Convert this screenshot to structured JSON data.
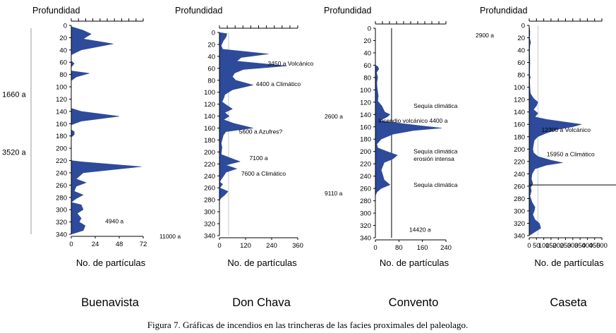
{
  "caption": "Figura 7. Gráficas de incendios en las trincheras de las facies proximales del paleolago.",
  "colors": {
    "fill": "#2e4a9a",
    "axis": "#000000",
    "grid": "#c8c8c8"
  },
  "chart_data": [
    {
      "type": "area",
      "site": "Buenavista",
      "ylabel": "Profundidad",
      "xlabel": "No. de partículas",
      "ylim": [
        0,
        340
      ],
      "y_ticks": [
        0,
        20,
        40,
        60,
        80,
        100,
        120,
        140,
        160,
        180,
        200,
        220,
        240,
        260,
        280,
        300,
        320,
        340
      ],
      "xlim": [
        0,
        72
      ],
      "x_ticks": [
        0,
        24,
        48,
        72
      ],
      "x_tick_labels": [
        "0",
        "24",
        "48",
        "72"
      ],
      "profile": [
        [
          0,
          0
        ],
        [
          2,
          0
        ],
        [
          8,
          12
        ],
        [
          14,
          20
        ],
        [
          22,
          12
        ],
        [
          30,
          42
        ],
        [
          40,
          10
        ],
        [
          48,
          0
        ],
        [
          58,
          0
        ],
        [
          62,
          3
        ],
        [
          68,
          0
        ],
        [
          74,
          0
        ],
        [
          78,
          18
        ],
        [
          84,
          5
        ],
        [
          90,
          0
        ],
        [
          135,
          0
        ],
        [
          140,
          10
        ],
        [
          148,
          48
        ],
        [
          156,
          10
        ],
        [
          162,
          0
        ],
        [
          170,
          0
        ],
        [
          173,
          3
        ],
        [
          178,
          3
        ],
        [
          182,
          0
        ],
        [
          220,
          0
        ],
        [
          222,
          10
        ],
        [
          230,
          70
        ],
        [
          240,
          12
        ],
        [
          250,
          5
        ],
        [
          256,
          15
        ],
        [
          262,
          5
        ],
        [
          270,
          3
        ],
        [
          276,
          12
        ],
        [
          282,
          5
        ],
        [
          288,
          0
        ],
        [
          292,
          10
        ],
        [
          300,
          12
        ],
        [
          306,
          6
        ],
        [
          314,
          10
        ],
        [
          320,
          8
        ],
        [
          326,
          14
        ],
        [
          334,
          12
        ],
        [
          340,
          0
        ]
      ],
      "annotations": [
        {
          "text": "4940 a",
          "depth": 319,
          "x": 34
        }
      ],
      "left_annotations": [
        {
          "text": "1660 a",
          "depth": 112
        },
        {
          "text": "3520 a",
          "depth": 206
        }
      ],
      "ref_line": null,
      "h_line": null
    },
    {
      "type": "area",
      "site": "Don Chava",
      "ylabel": "Profundidad",
      "xlabel": "No. de partículas",
      "ylim": [
        0,
        340
      ],
      "y_ticks": [
        0,
        20,
        40,
        60,
        80,
        100,
        120,
        140,
        160,
        180,
        200,
        220,
        240,
        260,
        280,
        300,
        320,
        340
      ],
      "xlim": [
        0,
        360
      ],
      "x_ticks": [
        0,
        120,
        240,
        360
      ],
      "x_tick_labels": [
        "0",
        "120",
        "240",
        "360"
      ],
      "profile": [
        [
          0,
          0
        ],
        [
          2,
          35
        ],
        [
          8,
          30
        ],
        [
          14,
          18
        ],
        [
          22,
          8
        ],
        [
          28,
          15
        ],
        [
          36,
          225
        ],
        [
          42,
          100
        ],
        [
          48,
          80
        ],
        [
          56,
          310
        ],
        [
          62,
          110
        ],
        [
          68,
          70
        ],
        [
          74,
          60
        ],
        [
          80,
          75
        ],
        [
          88,
          155
        ],
        [
          96,
          60
        ],
        [
          104,
          25
        ],
        [
          110,
          20
        ],
        [
          116,
          12
        ],
        [
          122,
          35
        ],
        [
          128,
          60
        ],
        [
          134,
          25
        ],
        [
          140,
          45
        ],
        [
          146,
          20
        ],
        [
          152,
          65
        ],
        [
          160,
          155
        ],
        [
          166,
          30
        ],
        [
          172,
          18
        ],
        [
          180,
          12
        ],
        [
          186,
          8
        ],
        [
          192,
          12
        ],
        [
          198,
          10
        ],
        [
          204,
          8
        ],
        [
          210,
          50
        ],
        [
          216,
          95
        ],
        [
          222,
          30
        ],
        [
          228,
          80
        ],
        [
          234,
          30
        ],
        [
          240,
          20
        ],
        [
          246,
          8
        ],
        [
          250,
          2
        ],
        [
          254,
          15
        ],
        [
          260,
          2
        ],
        [
          266,
          40
        ],
        [
          272,
          25
        ],
        [
          278,
          5
        ],
        [
          282,
          0
        ]
      ],
      "annotations": [
        {
          "text": "3450 a Volcánico",
          "depth": 52,
          "x": 222
        },
        {
          "text": "4400 a Climático",
          "depth": 86,
          "x": 168
        },
        {
          "text": "5600 a  Azufres?",
          "depth": 166,
          "x": 90
        },
        {
          "text": "7100 a",
          "depth": 210,
          "x": 138
        },
        {
          "text": "7600 a Climático",
          "depth": 236,
          "x": 100
        }
      ],
      "left_annotations": [
        {
          "text": "11000 a",
          "depth": 340
        }
      ],
      "ref_line": 42,
      "h_line": null
    },
    {
      "type": "area",
      "site": "Convento",
      "ylabel": "Profundidad",
      "xlabel": "No. de partículas",
      "ylim": [
        0,
        340
      ],
      "y_ticks": [
        0,
        20,
        40,
        60,
        80,
        100,
        120,
        140,
        160,
        180,
        200,
        220,
        240,
        260,
        280,
        300,
        320,
        340
      ],
      "xlim": [
        0,
        240
      ],
      "x_ticks": [
        0,
        80,
        160,
        240
      ],
      "x_tick_labels": [
        "0",
        "80",
        "160",
        "240"
      ],
      "profile": [
        [
          60,
          0
        ],
        [
          62,
          8
        ],
        [
          66,
          12
        ],
        [
          72,
          4
        ],
        [
          80,
          8
        ],
        [
          88,
          5
        ],
        [
          96,
          6
        ],
        [
          110,
          10
        ],
        [
          118,
          8
        ],
        [
          126,
          22
        ],
        [
          132,
          28
        ],
        [
          136,
          32
        ],
        [
          140,
          50
        ],
        [
          144,
          40
        ],
        [
          150,
          15
        ],
        [
          154,
          80
        ],
        [
          158,
          150
        ],
        [
          162,
          225
        ],
        [
          166,
          130
        ],
        [
          172,
          60
        ],
        [
          180,
          20
        ],
        [
          188,
          5
        ],
        [
          194,
          8
        ],
        [
          200,
          40
        ],
        [
          206,
          75
        ],
        [
          212,
          60
        ],
        [
          218,
          30
        ],
        [
          224,
          25
        ],
        [
          230,
          20
        ],
        [
          238,
          25
        ],
        [
          246,
          30
        ],
        [
          254,
          50
        ],
        [
          260,
          20
        ],
        [
          266,
          5
        ],
        [
          272,
          0
        ]
      ],
      "annotations": [
        {
          "text": "Sequía climática",
          "depth": 126,
          "x": 130
        },
        {
          "text": "Incendio volcánico 4400 a",
          "depth": 150,
          "x": 10
        },
        {
          "text": "Sequía climática",
          "depth": 200,
          "x": 130
        },
        {
          "text": "erosión intensa",
          "depth": 212,
          "x": 130
        },
        {
          "text": "Sequía climática",
          "depth": 254,
          "x": 130
        },
        {
          "text": "14420 a",
          "depth": 327,
          "x": 115
        }
      ],
      "left_annotations": [
        {
          "text": "2600 a",
          "depth": 142
        },
        {
          "text": "9110 a",
          "depth": 267
        }
      ],
      "ref_line": 55,
      "h_line": null
    },
    {
      "type": "area",
      "site": "Caseta",
      "ylabel": "Profundidad",
      "xlabel": "No. de partículas",
      "ylim": [
        0,
        340
      ],
      "y_ticks": [
        0,
        20,
        40,
        60,
        80,
        100,
        120,
        140,
        160,
        180,
        200,
        220,
        240,
        260,
        280,
        300,
        320,
        340
      ],
      "xlim": [
        0,
        500
      ],
      "x_ticks": [
        0,
        50,
        100,
        150,
        200,
        250,
        300,
        350,
        400,
        450,
        500
      ],
      "x_tick_labels": [
        "0",
        "50",
        "100",
        "150",
        "200",
        "250",
        "300",
        "350",
        "400",
        "450",
        "500"
      ],
      "profile": [
        [
          0,
          0
        ],
        [
          10,
          5
        ],
        [
          20,
          3
        ],
        [
          28,
          10
        ],
        [
          32,
          5
        ],
        [
          40,
          3
        ],
        [
          60,
          5
        ],
        [
          80,
          3
        ],
        [
          84,
          8
        ],
        [
          88,
          3
        ],
        [
          100,
          5
        ],
        [
          110,
          8
        ],
        [
          118,
          30
        ],
        [
          124,
          60
        ],
        [
          130,
          50
        ],
        [
          136,
          30
        ],
        [
          142,
          60
        ],
        [
          148,
          40
        ],
        [
          152,
          120
        ],
        [
          156,
          240
        ],
        [
          160,
          360
        ],
        [
          164,
          300
        ],
        [
          168,
          200
        ],
        [
          174,
          120
        ],
        [
          180,
          60
        ],
        [
          186,
          35
        ],
        [
          192,
          30
        ],
        [
          200,
          25
        ],
        [
          206,
          30
        ],
        [
          212,
          60
        ],
        [
          218,
          150
        ],
        [
          222,
          230
        ],
        [
          226,
          120
        ],
        [
          232,
          40
        ],
        [
          240,
          20
        ],
        [
          248,
          15
        ],
        [
          256,
          25
        ],
        [
          262,
          10
        ],
        [
          268,
          15
        ],
        [
          276,
          5
        ],
        [
          286,
          20
        ],
        [
          294,
          40
        ],
        [
          300,
          35
        ],
        [
          306,
          25
        ],
        [
          314,
          40
        ],
        [
          320,
          70
        ],
        [
          328,
          80
        ],
        [
          334,
          40
        ],
        [
          340,
          0
        ]
      ],
      "annotations": [
        {
          "text": "12300 a  Volcánico",
          "depth": 169,
          "x": 85
        },
        {
          "text": "15950 a Climático",
          "depth": 208,
          "x": 120
        }
      ],
      "left_annotations": [
        {
          "text": "2900 a",
          "depth": 15
        }
      ],
      "ref_line": 60,
      "h_line": 258
    }
  ]
}
